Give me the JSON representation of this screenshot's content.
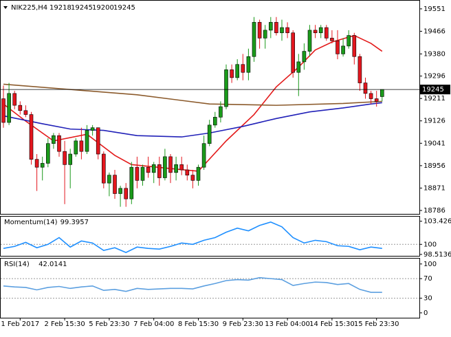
{
  "chart_data": [
    {
      "type": "candlestick",
      "title": "NIK225,H4",
      "open": [
        19210,
        19120,
        19230,
        19185,
        19165,
        19150,
        18980,
        18950,
        18965,
        19040,
        19070,
        19010,
        18960,
        19000,
        19050,
        19010,
        19090,
        19100,
        19000,
        18890,
        18920,
        18850,
        18870,
        18830,
        18950,
        18900,
        18950,
        18930,
        18960,
        18910,
        18990,
        18930,
        18960,
        18940,
        18920,
        18900,
        18950,
        19040,
        19110,
        19140,
        19180,
        19320,
        19290,
        19340,
        19310,
        19370,
        19500,
        19440,
        19470,
        19500,
        19460,
        19480,
        19460,
        19310,
        19350,
        19390,
        19470,
        19460,
        19480,
        19440,
        19430,
        19380,
        19410,
        19450,
        19370,
        19270,
        19230,
        19210,
        19218
      ],
      "high": [
        19260,
        19270,
        19240,
        19200,
        19185,
        19160,
        19000,
        18990,
        19060,
        19080,
        19080,
        19050,
        19020,
        19060,
        19100,
        19110,
        19110,
        19100,
        19010,
        18930,
        18940,
        18880,
        18890,
        18970,
        18990,
        18960,
        18990,
        18970,
        18990,
        19020,
        19000,
        18990,
        18990,
        18960,
        18940,
        18960,
        19070,
        19130,
        19160,
        19200,
        19340,
        19340,
        19360,
        19380,
        19400,
        19520,
        19510,
        19490,
        19520,
        19520,
        19510,
        19500,
        19470,
        19380,
        19420,
        19490,
        19490,
        19490,
        19490,
        19470,
        19470,
        19440,
        19470,
        19460,
        19380,
        19290,
        19240,
        19240,
        19245
      ],
      "low": [
        19100,
        19110,
        19170,
        19150,
        19140,
        18960,
        18860,
        18900,
        18950,
        19020,
        18990,
        18810,
        18870,
        18990,
        18980,
        19000,
        19070,
        18980,
        18870,
        18840,
        18830,
        18800,
        18800,
        18810,
        18870,
        18880,
        18910,
        18890,
        18880,
        18900,
        18890,
        18900,
        18920,
        18900,
        18870,
        18880,
        18940,
        19030,
        19100,
        19120,
        19170,
        19270,
        19280,
        19280,
        19280,
        19350,
        19400,
        19400,
        19440,
        19450,
        19430,
        19440,
        19290,
        19220,
        19320,
        19370,
        19440,
        19440,
        19430,
        19420,
        19360,
        19370,
        19400,
        19340,
        19240,
        19210,
        19190,
        19180,
        19200
      ],
      "close": [
        19120,
        19230,
        19185,
        19165,
        19150,
        18980,
        18950,
        18965,
        19040,
        19070,
        19010,
        18960,
        19000,
        19050,
        19010,
        19090,
        19100,
        19000,
        18890,
        18920,
        18850,
        18870,
        18830,
        18950,
        18900,
        18950,
        18930,
        18960,
        18910,
        18990,
        18930,
        18960,
        18940,
        18920,
        18900,
        18950,
        19040,
        19110,
        19140,
        19180,
        19320,
        19290,
        19340,
        19310,
        19370,
        19500,
        19440,
        19470,
        19500,
        19460,
        19480,
        19460,
        19310,
        19350,
        19390,
        19470,
        19460,
        19480,
        19440,
        19430,
        19380,
        19410,
        19450,
        19370,
        19270,
        19230,
        19210,
        19200,
        19245
      ],
      "bull_color": "#1a9a1a",
      "bear_color": "#e3161e",
      "series": [
        {
          "color": "#e31a1a",
          "x": [
            0,
            4,
            9,
            15,
            20,
            23,
            30,
            35,
            40,
            45,
            49,
            53,
            56,
            59,
            63,
            66,
            68
          ],
          "values": [
            19190,
            19125,
            19050,
            19075,
            18995,
            18960,
            18945,
            18935,
            19050,
            19150,
            19255,
            19330,
            19395,
            19425,
            19450,
            19420,
            19390
          ]
        },
        {
          "color": "#2121b8",
          "x": [
            0,
            7,
            12,
            18,
            24,
            32,
            37,
            43,
            49,
            55,
            61,
            66,
            68
          ],
          "values": [
            19145,
            19115,
            19095,
            19090,
            19070,
            19065,
            19080,
            19105,
            19135,
            19160,
            19175,
            19190,
            19195
          ]
        },
        {
          "color": "#8b5a2b",
          "x": [
            0,
            12,
            24,
            37,
            49,
            61,
            68
          ],
          "values": [
            19265,
            19245,
            19225,
            19190,
            19185,
            19192,
            19200
          ]
        }
      ],
      "ylim": [
        18773,
        19582
      ],
      "yticks": [
        19551,
        19466,
        19380,
        19296,
        19211,
        19126,
        19041,
        18956,
        18871,
        18786
      ],
      "xticks": [
        {
          "value": 3,
          "label": "1 Feb 2017"
        },
        {
          "value": 11,
          "label": "2 Feb 15:30"
        },
        {
          "value": 19,
          "label": "5 Feb 23:30"
        },
        {
          "value": 27,
          "label": "7 Feb 04:00"
        },
        {
          "value": 35,
          "label": "8 Feb 15:30"
        },
        {
          "value": 43,
          "label": "9 Feb 23:30"
        },
        {
          "value": 51,
          "label": "13 Feb 04:00"
        },
        {
          "value": 59,
          "label": "14 Feb 15:30"
        },
        {
          "value": 67,
          "label": "15 Feb 23:30"
        }
      ]
    },
    {
      "type": "line",
      "title": "Momentum(14)",
      "last": 99.3957,
      "color": "#1e8fff",
      "x": [
        0,
        2,
        4,
        6,
        8,
        10,
        12,
        14,
        16,
        18,
        20,
        22,
        24,
        26,
        28,
        30,
        32,
        34,
        36,
        38,
        40,
        42,
        44,
        46,
        48,
        50,
        52,
        54,
        56,
        58,
        60,
        62,
        64,
        66,
        68
      ],
      "values": [
        99.4,
        99.7,
        100.3,
        99.5,
        100.0,
        101.0,
        99.6,
        100.5,
        100.2,
        99.1,
        99.5,
        98.8,
        99.6,
        99.4,
        99.3,
        99.7,
        100.2,
        100.0,
        100.6,
        101.0,
        101.8,
        102.4,
        102.0,
        102.8,
        103.3,
        102.6,
        101.0,
        100.2,
        100.6,
        100.4,
        99.8,
        99.7,
        99.2,
        99.6,
        99.4
      ],
      "ylim": [
        98.3,
        104.1
      ],
      "yticks": [
        103.4266,
        100,
        98.5136
      ],
      "levels": [
        100
      ]
    },
    {
      "type": "line",
      "title": "RSI(14)",
      "last": 42.0141,
      "color": "#5b9fe0",
      "x": [
        0,
        2,
        4,
        6,
        8,
        10,
        12,
        14,
        16,
        18,
        20,
        22,
        24,
        26,
        28,
        30,
        32,
        34,
        36,
        38,
        40,
        42,
        44,
        46,
        48,
        50,
        52,
        54,
        56,
        58,
        60,
        62,
        64,
        66,
        68
      ],
      "values": [
        55,
        53,
        52,
        47,
        52,
        54,
        50,
        53,
        55,
        46,
        48,
        44,
        50,
        48,
        49,
        50,
        50,
        49,
        55,
        60,
        66,
        68,
        67,
        72,
        70,
        68,
        56,
        60,
        63,
        62,
        58,
        60,
        48,
        42,
        42
      ],
      "ylim": [
        -10,
        111
      ],
      "yticks": [
        100,
        70,
        30,
        0
      ],
      "levels": [
        70,
        30
      ]
    }
  ]
}
